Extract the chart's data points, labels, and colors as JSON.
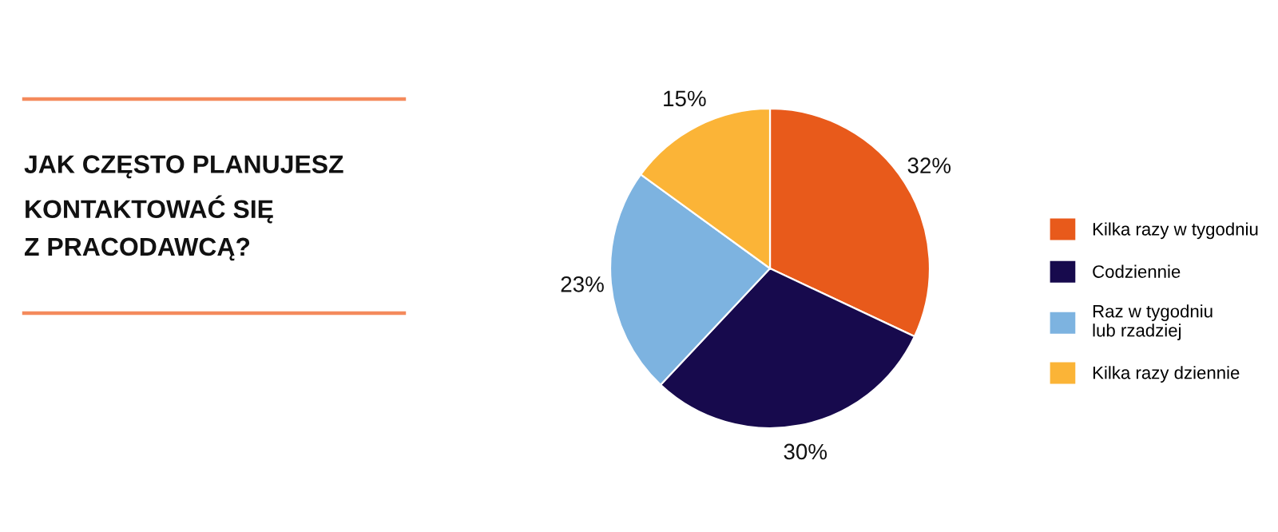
{
  "chart_data": {
    "type": "pie",
    "title": "JAK CZĘSTO PLANUJESZ\nKONTAKTOWAĆ SIĘ\nZ PRACODAWCĄ?",
    "categories": [
      "Kilka razy w tygodniu",
      "Codziennie",
      "Raz w tygodniu\nlub rzadziej",
      "Kilka razy dziennie"
    ],
    "values": [
      32,
      30,
      23,
      15
    ],
    "colors": [
      "#e85a1b",
      "#170a4d",
      "#7db3e0",
      "#fbb437"
    ],
    "value_labels": [
      "32%",
      "30%",
      "23%",
      "15%"
    ],
    "legend": "right"
  }
}
